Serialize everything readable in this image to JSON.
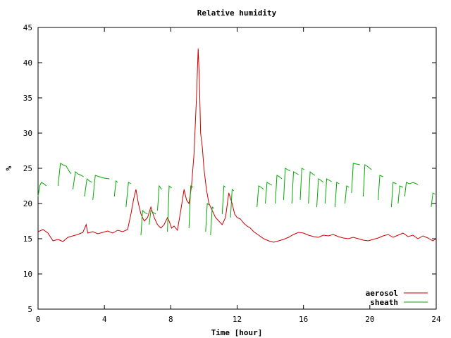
{
  "chart_data": {
    "type": "line",
    "title": "Relative humidity",
    "xlabel": "Time [hour]",
    "ylabel": "%",
    "xlim": [
      0,
      24
    ],
    "ylim": [
      5,
      45
    ],
    "xticks": [
      0,
      4,
      8,
      12,
      16,
      20,
      24
    ],
    "yticks": [
      5,
      10,
      15,
      20,
      25,
      30,
      35,
      40,
      45
    ],
    "grid": false,
    "legend_position": "bottom-right",
    "series": [
      {
        "name": "aerosol",
        "color": "#cc0000",
        "x": [
          0.0,
          0.3,
          0.6,
          0.9,
          1.2,
          1.5,
          1.8,
          2.1,
          2.4,
          2.7,
          2.9,
          3.0,
          3.3,
          3.6,
          3.9,
          4.2,
          4.5,
          4.8,
          5.1,
          5.4,
          5.6,
          5.75,
          5.9,
          6.05,
          6.2,
          6.4,
          6.6,
          6.8,
          7.0,
          7.2,
          7.4,
          7.6,
          7.8,
          7.9,
          8.05,
          8.2,
          8.4,
          8.6,
          8.8,
          8.95,
          9.1,
          9.25,
          9.4,
          9.55,
          9.65,
          9.72,
          9.8,
          9.9,
          10.0,
          10.15,
          10.3,
          10.5,
          10.7,
          10.9,
          11.1,
          11.3,
          11.5,
          11.7,
          11.85,
          12.0,
          12.2,
          12.4,
          12.6,
          12.8,
          13.0,
          13.3,
          13.6,
          13.9,
          14.2,
          14.5,
          14.8,
          15.1,
          15.4,
          15.7,
          16.0,
          16.3,
          16.6,
          16.9,
          17.2,
          17.5,
          17.8,
          18.1,
          18.4,
          18.7,
          19.0,
          19.3,
          19.6,
          19.9,
          20.2,
          20.5,
          20.8,
          21.1,
          21.4,
          21.7,
          22.0,
          22.3,
          22.6,
          22.9,
          23.2,
          23.5,
          23.8,
          24.0
        ],
        "y": [
          16.0,
          16.3,
          15.8,
          14.7,
          14.9,
          14.6,
          15.2,
          15.4,
          15.6,
          15.9,
          17.0,
          15.8,
          16.0,
          15.7,
          15.9,
          16.1,
          15.8,
          16.2,
          16.0,
          16.3,
          18.5,
          20.5,
          22.0,
          20.0,
          18.5,
          17.5,
          18.0,
          19.5,
          18.0,
          17.0,
          16.5,
          17.0,
          18.0,
          17.5,
          16.5,
          16.8,
          16.2,
          19.0,
          22.0,
          20.5,
          20.0,
          22.5,
          27.0,
          35.0,
          42.0,
          38.0,
          30.0,
          28.0,
          25.0,
          22.0,
          20.0,
          19.0,
          18.0,
          17.5,
          17.0,
          18.0,
          21.5,
          20.0,
          18.5,
          18.0,
          17.8,
          17.2,
          16.8,
          16.5,
          16.0,
          15.5,
          15.0,
          14.7,
          14.5,
          14.7,
          14.9,
          15.2,
          15.6,
          15.9,
          15.8,
          15.5,
          15.3,
          15.2,
          15.5,
          15.4,
          15.6,
          15.3,
          15.1,
          15.0,
          15.2,
          15.0,
          14.8,
          14.7,
          14.9,
          15.1,
          15.4,
          15.6,
          15.2,
          15.5,
          15.8,
          15.3,
          15.5,
          15.0,
          15.4,
          15.1,
          14.7,
          15.0
        ]
      },
      {
        "name": "sheath",
        "color": "#00aa00",
        "segments": [
          {
            "x": [
              0.0,
              0.1,
              0.2,
              0.35,
              0.5
            ],
            "y": [
              21.0,
              22.5,
              23.0,
              22.8,
              22.5
            ]
          },
          {
            "x": [
              1.2,
              1.35,
              1.5,
              1.7,
              1.9,
              2.0
            ],
            "y": [
              22.5,
              25.7,
              25.5,
              25.3,
              24.5,
              24.2
            ]
          },
          {
            "x": [
              2.1,
              2.25,
              2.4,
              2.6,
              2.75
            ],
            "y": [
              22.0,
              24.5,
              24.2,
              24.0,
              23.8
            ]
          },
          {
            "x": [
              2.8,
              2.95,
              3.1,
              3.25
            ],
            "y": [
              21.0,
              23.5,
              23.2,
              23.0
            ]
          },
          {
            "x": [
              3.3,
              3.45,
              3.7,
              4.0,
              4.3
            ],
            "y": [
              20.5,
              24.0,
              23.8,
              23.6,
              23.5
            ]
          },
          {
            "x": [
              4.6,
              4.7,
              4.8
            ],
            "y": [
              21.0,
              23.2,
              23.0
            ]
          },
          {
            "x": [
              5.3,
              5.45,
              5.6
            ],
            "y": [
              19.5,
              23.0,
              22.8
            ]
          },
          {
            "x": [
              6.2,
              6.3,
              6.45,
              6.6
            ],
            "y": [
              15.5,
              19.0,
              18.7,
              18.5
            ]
          },
          {
            "x": [
              6.7,
              6.8,
              6.95,
              7.1
            ],
            "y": [
              17.0,
              19.0,
              18.7,
              18.5
            ]
          },
          {
            "x": [
              7.2,
              7.3,
              7.45
            ],
            "y": [
              19.0,
              22.5,
              22.0
            ]
          },
          {
            "x": [
              7.8,
              7.9,
              8.05
            ],
            "y": [
              16.0,
              22.5,
              22.2
            ]
          },
          {
            "x": [
              9.1,
              9.2,
              9.35
            ],
            "y": [
              16.5,
              22.5,
              22.3
            ]
          },
          {
            "x": [
              10.1,
              10.2,
              10.3
            ],
            "y": [
              16.0,
              20.0,
              19.8
            ]
          },
          {
            "x": [
              10.4,
              10.5,
              10.6
            ],
            "y": [
              15.5,
              19.5,
              19.3
            ]
          },
          {
            "x": [
              11.1,
              11.2,
              11.3
            ],
            "y": [
              18.5,
              22.5,
              22.3
            ]
          },
          {
            "x": [
              11.6,
              11.7,
              11.8
            ],
            "y": [
              18.0,
              22.0,
              21.8
            ]
          },
          {
            "x": [
              13.2,
              13.3,
              13.45,
              13.6
            ],
            "y": [
              19.5,
              22.5,
              22.3,
              22.0
            ]
          },
          {
            "x": [
              13.7,
              13.8,
              13.95,
              14.1
            ],
            "y": [
              20.0,
              23.0,
              22.8,
              22.6
            ]
          },
          {
            "x": [
              14.3,
              14.4,
              14.55,
              14.7
            ],
            "y": [
              20.0,
              24.0,
              23.8,
              23.5
            ]
          },
          {
            "x": [
              14.8,
              14.9,
              15.05,
              15.2
            ],
            "y": [
              20.5,
              25.0,
              24.8,
              24.6
            ]
          },
          {
            "x": [
              15.3,
              15.4,
              15.55,
              15.7
            ],
            "y": [
              20.0,
              24.5,
              24.3,
              24.1
            ]
          },
          {
            "x": [
              15.8,
              15.9,
              16.05
            ],
            "y": [
              20.5,
              25.0,
              24.8
            ]
          },
          {
            "x": [
              16.3,
              16.4,
              16.55,
              16.7
            ],
            "y": [
              20.0,
              24.5,
              24.2,
              24.0
            ]
          },
          {
            "x": [
              16.8,
              16.9,
              17.05,
              17.2
            ],
            "y": [
              19.5,
              23.5,
              23.3,
              23.0
            ]
          },
          {
            "x": [
              17.3,
              17.4,
              17.55,
              17.7
            ],
            "y": [
              20.0,
              23.5,
              23.3,
              23.1
            ]
          },
          {
            "x": [
              17.9,
              18.0,
              18.15
            ],
            "y": [
              19.5,
              23.0,
              22.8
            ]
          },
          {
            "x": [
              18.5,
              18.6,
              18.75
            ],
            "y": [
              20.0,
              22.5,
              22.3
            ]
          },
          {
            "x": [
              18.9,
              19.0,
              19.2,
              19.4
            ],
            "y": [
              21.5,
              25.7,
              25.6,
              25.5
            ]
          },
          {
            "x": [
              19.6,
              19.7,
              19.9,
              20.1
            ],
            "y": [
              21.0,
              25.5,
              25.2,
              24.8
            ]
          },
          {
            "x": [
              20.5,
              20.6,
              20.8
            ],
            "y": [
              20.5,
              24.0,
              23.8
            ]
          },
          {
            "x": [
              21.3,
              21.4,
              21.6
            ],
            "y": [
              19.5,
              23.0,
              22.8
            ]
          },
          {
            "x": [
              21.7,
              21.8,
              22.0
            ],
            "y": [
              20.0,
              22.5,
              22.3
            ]
          },
          {
            "x": [
              22.1,
              22.2,
              22.4,
              22.6,
              22.9
            ],
            "y": [
              21.0,
              23.0,
              22.8,
              23.0,
              22.7
            ]
          },
          {
            "x": [
              23.7,
              23.8,
              23.95
            ],
            "y": [
              19.5,
              21.5,
              21.3
            ]
          }
        ]
      }
    ]
  }
}
